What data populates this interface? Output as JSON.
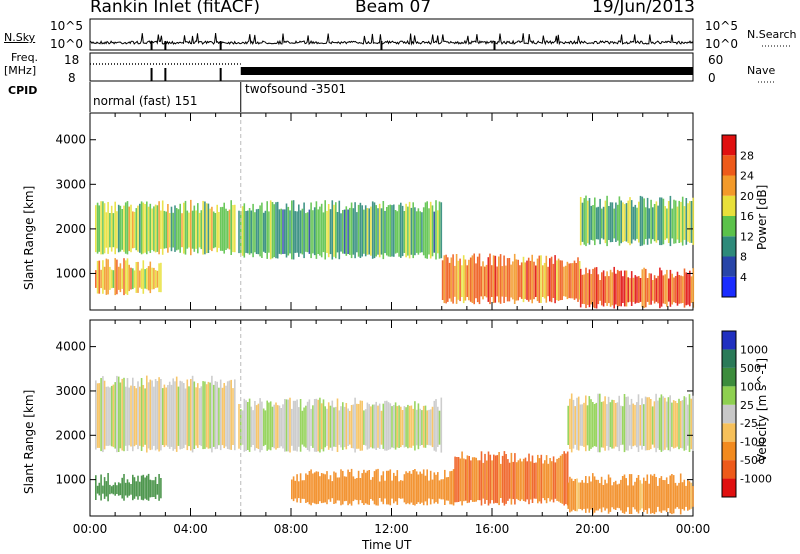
{
  "header": {
    "site": "Rankin Inlet (fitACF)",
    "beam": "Beam 07",
    "date": "19/Jun/2013"
  },
  "params": {
    "nsky_label": "N.Sky",
    "nsearch_label": "N.Search",
    "freq_label": "Freq.",
    "freq_unit": "[MHz]",
    "nave_label": "Nave",
    "cpid_label": "CPID",
    "left_top_tick": "10^5",
    "left_bottom_tick": "10^0",
    "right_top_tick": "10^5",
    "right_bottom_tick": "10^0",
    "freq_top_tick": "18",
    "freq_bottom_tick": "8",
    "nave_top_tick": "60",
    "nave_bottom_tick": "0",
    "cpid_modes": [
      "normal (fast) 151",
      "twofsound -3501"
    ]
  },
  "chart_data": [
    {
      "type": "heatmap",
      "title": "",
      "xlabel": "Time UT",
      "ylabel": "Slant Range [km]",
      "colorbar_label": "Power [dB]",
      "xlim": [
        "00:00",
        "24:00"
      ],
      "ylim": [
        180,
        4600
      ],
      "x_ticks": [
        "00:00",
        "04:00",
        "08:00",
        "12:00",
        "16:00",
        "20:00",
        "00:00"
      ],
      "y_ticks": [
        1000,
        2000,
        3000,
        4000
      ],
      "colorbar_ticks": [
        4,
        8,
        12,
        16,
        20,
        24,
        28
      ],
      "colorbar_colors": [
        "#1a2cff",
        "#2845a8",
        "#2e8a7a",
        "#5bc24a",
        "#e8e03a",
        "#f39a2a",
        "#ee5a1a",
        "#e01010"
      ],
      "regions": [
        {
          "t0": 0.2,
          "t1": 5.8,
          "r0": 1500,
          "r1": 2500,
          "level": 16
        },
        {
          "t0": 0.2,
          "t1": 2.8,
          "r0": 600,
          "r1": 1200,
          "level": 20
        },
        {
          "t0": 5.9,
          "t1": 14.0,
          "r0": 1400,
          "r1": 2500,
          "level": 12
        },
        {
          "t0": 14.0,
          "t1": 19.5,
          "r0": 400,
          "r1": 1300,
          "level": 24
        },
        {
          "t0": 19.5,
          "t1": 24.0,
          "r0": 300,
          "r1": 1000,
          "level": 26
        },
        {
          "t0": 19.5,
          "t1": 24.0,
          "r0": 1700,
          "r1": 2600,
          "level": 14
        }
      ]
    },
    {
      "type": "heatmap",
      "title": "",
      "xlabel": "Time UT",
      "ylabel": "Slant Range [km]",
      "colorbar_label": "Velocity [m s^-1]",
      "xlim": [
        "00:00",
        "24:00"
      ],
      "ylim": [
        180,
        4600
      ],
      "x_ticks": [
        "00:00",
        "04:00",
        "08:00",
        "12:00",
        "16:00",
        "20:00",
        "00:00"
      ],
      "y_ticks": [
        1000,
        2000,
        3000,
        4000
      ],
      "colorbar_ticks": [
        1000,
        500,
        100,
        25,
        -25,
        -100,
        -500,
        -1000
      ],
      "colorbar_colors": [
        "#2030c0",
        "#2a7a58",
        "#3c8c3c",
        "#8ed050",
        "#c8c8c8",
        "#f6c05a",
        "#f28a1e",
        "#ee5a1a",
        "#e01010"
      ],
      "regions": [
        {
          "t0": 0.2,
          "t1": 5.8,
          "r0": 1700,
          "r1": 3200,
          "value": 0
        },
        {
          "t0": 0.2,
          "t1": 2.8,
          "r0": 600,
          "r1": 1000,
          "value": 300
        },
        {
          "t0": 5.9,
          "t1": 14.0,
          "r0": 1700,
          "r1": 2700,
          "value": 0
        },
        {
          "t0": 8.0,
          "t1": 14.5,
          "r0": 500,
          "r1": 1100,
          "value": -200
        },
        {
          "t0": 14.5,
          "t1": 19.0,
          "r0": 500,
          "r1": 1500,
          "value": -500
        },
        {
          "t0": 19.0,
          "t1": 24.0,
          "r0": 1700,
          "r1": 2800,
          "value": 0
        },
        {
          "t0": 19.0,
          "t1": 24.0,
          "r0": 300,
          "r1": 1000,
          "value": -150
        }
      ]
    }
  ]
}
